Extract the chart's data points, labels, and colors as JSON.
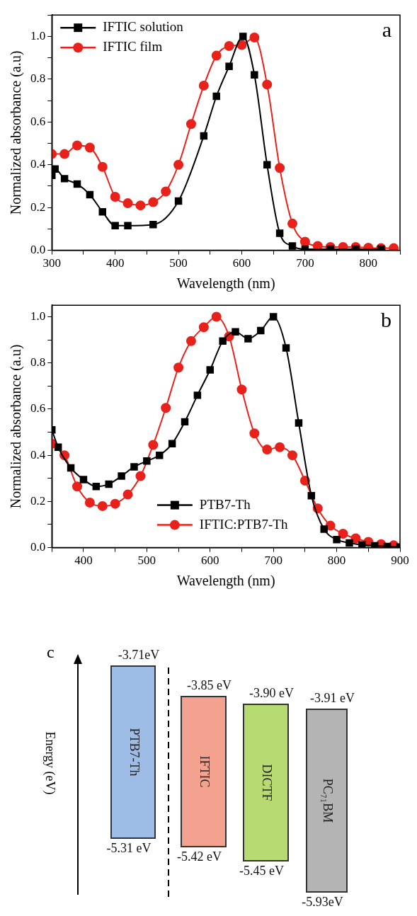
{
  "chart_data": [
    {
      "type": "line",
      "xlabel": "Wavelength (nm)",
      "ylabel": "Normalized absorbance (a.u)",
      "annotations": [
        "a"
      ],
      "legend": "top left",
      "xlim": [
        300,
        850
      ],
      "xticks": [
        300,
        {
          "value": 350,
          "label": null
        },
        400,
        {
          "value": 450,
          "label": null
        },
        500,
        {
          "value": 550,
          "label": null
        },
        600,
        {
          "value": 650,
          "label": null
        },
        700,
        {
          "value": 750,
          "label": null
        },
        800,
        {
          "value": 850,
          "label": null
        }
      ],
      "ylim": [
        0,
        1.1
      ],
      "yticks": [
        {
          "value": 0,
          "label": "0.0"
        },
        {
          "value": 0.1,
          "label": null
        },
        {
          "value": 0.2,
          "label": "0.2"
        },
        {
          "value": 0.3,
          "label": null
        },
        {
          "value": 0.4,
          "label": "0.4"
        },
        {
          "value": 0.5,
          "label": null
        },
        {
          "value": 0.6,
          "label": "0.6"
        },
        {
          "value": 0.7,
          "label": null
        },
        {
          "value": 0.8,
          "label": "0.8"
        },
        {
          "value": 0.9,
          "label": null
        },
        {
          "value": 1.0,
          "label": "1.0"
        },
        {
          "value": 1.1,
          "label": null
        }
      ],
      "series": [
        {
          "name": "IFTIC solution",
          "type": "line",
          "marker": "square",
          "color": "#000000",
          "x": [
            300,
            305,
            320,
            340,
            360,
            380,
            400,
            420,
            460,
            500,
            540,
            560,
            580,
            602,
            620,
            640,
            660,
            680,
            700,
            740,
            780,
            820
          ],
          "values": [
            0.35,
            0.38,
            0.335,
            0.31,
            0.26,
            0.18,
            0.115,
            0.115,
            0.12,
            0.23,
            0.535,
            0.72,
            0.86,
            1.0,
            0.82,
            0.4,
            0.08,
            0.02,
            0.005,
            0.005,
            0.005,
            0.005
          ]
        },
        {
          "name": "IFTIC film",
          "type": "line",
          "marker": "circle",
          "color": "#e8221b",
          "x": [
            300,
            320,
            340,
            360,
            380,
            400,
            420,
            440,
            460,
            480,
            500,
            520,
            540,
            560,
            580,
            600,
            620,
            640,
            660,
            680,
            700,
            720,
            740,
            760,
            780,
            800,
            820,
            840
          ],
          "values": [
            0.45,
            0.45,
            0.49,
            0.48,
            0.39,
            0.25,
            0.22,
            0.21,
            0.225,
            0.275,
            0.4,
            0.59,
            0.77,
            0.91,
            0.955,
            0.96,
            0.995,
            0.775,
            0.385,
            0.125,
            0.04,
            0.02,
            0.015,
            0.015,
            0.015,
            0.012,
            0.01,
            0.01
          ]
        }
      ]
    },
    {
      "type": "line",
      "xlabel": "Wavelength (nm)",
      "ylabel": "Normalized absorbance (a.u)",
      "annotations": [
        "b"
      ],
      "legend": "bottom",
      "xlim": [
        350,
        900
      ],
      "xticks": [
        {
          "value": 350,
          "label": null
        },
        400,
        {
          "value": 450,
          "label": null
        },
        500,
        {
          "value": 550,
          "label": null
        },
        600,
        {
          "value": 650,
          "label": null
        },
        700,
        {
          "value": 750,
          "label": null
        },
        800,
        {
          "value": 850,
          "label": null
        },
        900
      ],
      "ylim": [
        0,
        1.05
      ],
      "yticks": [
        {
          "value": 0,
          "label": "0.0"
        },
        {
          "value": 0.1,
          "label": null
        },
        {
          "value": 0.2,
          "label": "0.2"
        },
        {
          "value": 0.3,
          "label": null
        },
        {
          "value": 0.4,
          "label": "0.4"
        },
        {
          "value": 0.5,
          "label": null
        },
        {
          "value": 0.6,
          "label": "0.6"
        },
        {
          "value": 0.7,
          "label": null
        },
        {
          "value": 0.8,
          "label": "0.8"
        },
        {
          "value": 0.9,
          "label": null
        },
        {
          "value": 1.0,
          "label": "1.0"
        }
      ],
      "series": [
        {
          "name": "PTB7-Th",
          "type": "line",
          "marker": "square",
          "color": "#000000",
          "x": [
            350,
            360,
            380,
            400,
            420,
            440,
            460,
            480,
            500,
            520,
            540,
            560,
            580,
            600,
            620,
            640,
            660,
            680,
            700,
            720,
            740,
            760,
            780,
            800,
            820,
            840,
            860,
            880,
            900
          ],
          "values": [
            0.51,
            0.435,
            0.345,
            0.295,
            0.265,
            0.275,
            0.31,
            0.35,
            0.375,
            0.4,
            0.45,
            0.545,
            0.66,
            0.77,
            0.895,
            0.935,
            0.905,
            0.94,
            1.0,
            0.865,
            0.54,
            0.225,
            0.08,
            0.035,
            0.02,
            0.012,
            0.008,
            0.005,
            0.003
          ]
        },
        {
          "name": "IFTIC:PTB7-Th",
          "type": "line",
          "marker": "circle",
          "color": "#e8221b",
          "x": [
            350,
            370,
            390,
            410,
            430,
            450,
            470,
            490,
            510,
            530,
            550,
            570,
            590,
            610,
            630,
            650,
            670,
            690,
            710,
            730,
            750,
            770,
            790,
            810,
            830,
            850,
            870,
            890
          ],
          "values": [
            0.45,
            0.4,
            0.265,
            0.195,
            0.18,
            0.19,
            0.23,
            0.31,
            0.445,
            0.605,
            0.78,
            0.895,
            0.955,
            1.0,
            0.915,
            0.685,
            0.495,
            0.425,
            0.435,
            0.4,
            0.29,
            0.17,
            0.095,
            0.06,
            0.04,
            0.025,
            0.015,
            0.01
          ]
        }
      ]
    },
    {
      "type": "other",
      "ylabel": "Energy (eV)",
      "categories": [
        "PTB7-Th",
        "IFTIC",
        "DICTF",
        "PC₇₁BM"
      ],
      "colors": [
        "#9dbde6",
        "#f3a28f",
        "#b8da72",
        "#b4b4b4"
      ],
      "annotations": [
        "c",
        "-3.71eV",
        "-5.31 eV",
        "-3.85 eV",
        "-5.42 eV",
        "-3.90 eV",
        "-5.45 eV",
        "-3.91 eV",
        "-5.93eV"
      ]
    }
  ]
}
